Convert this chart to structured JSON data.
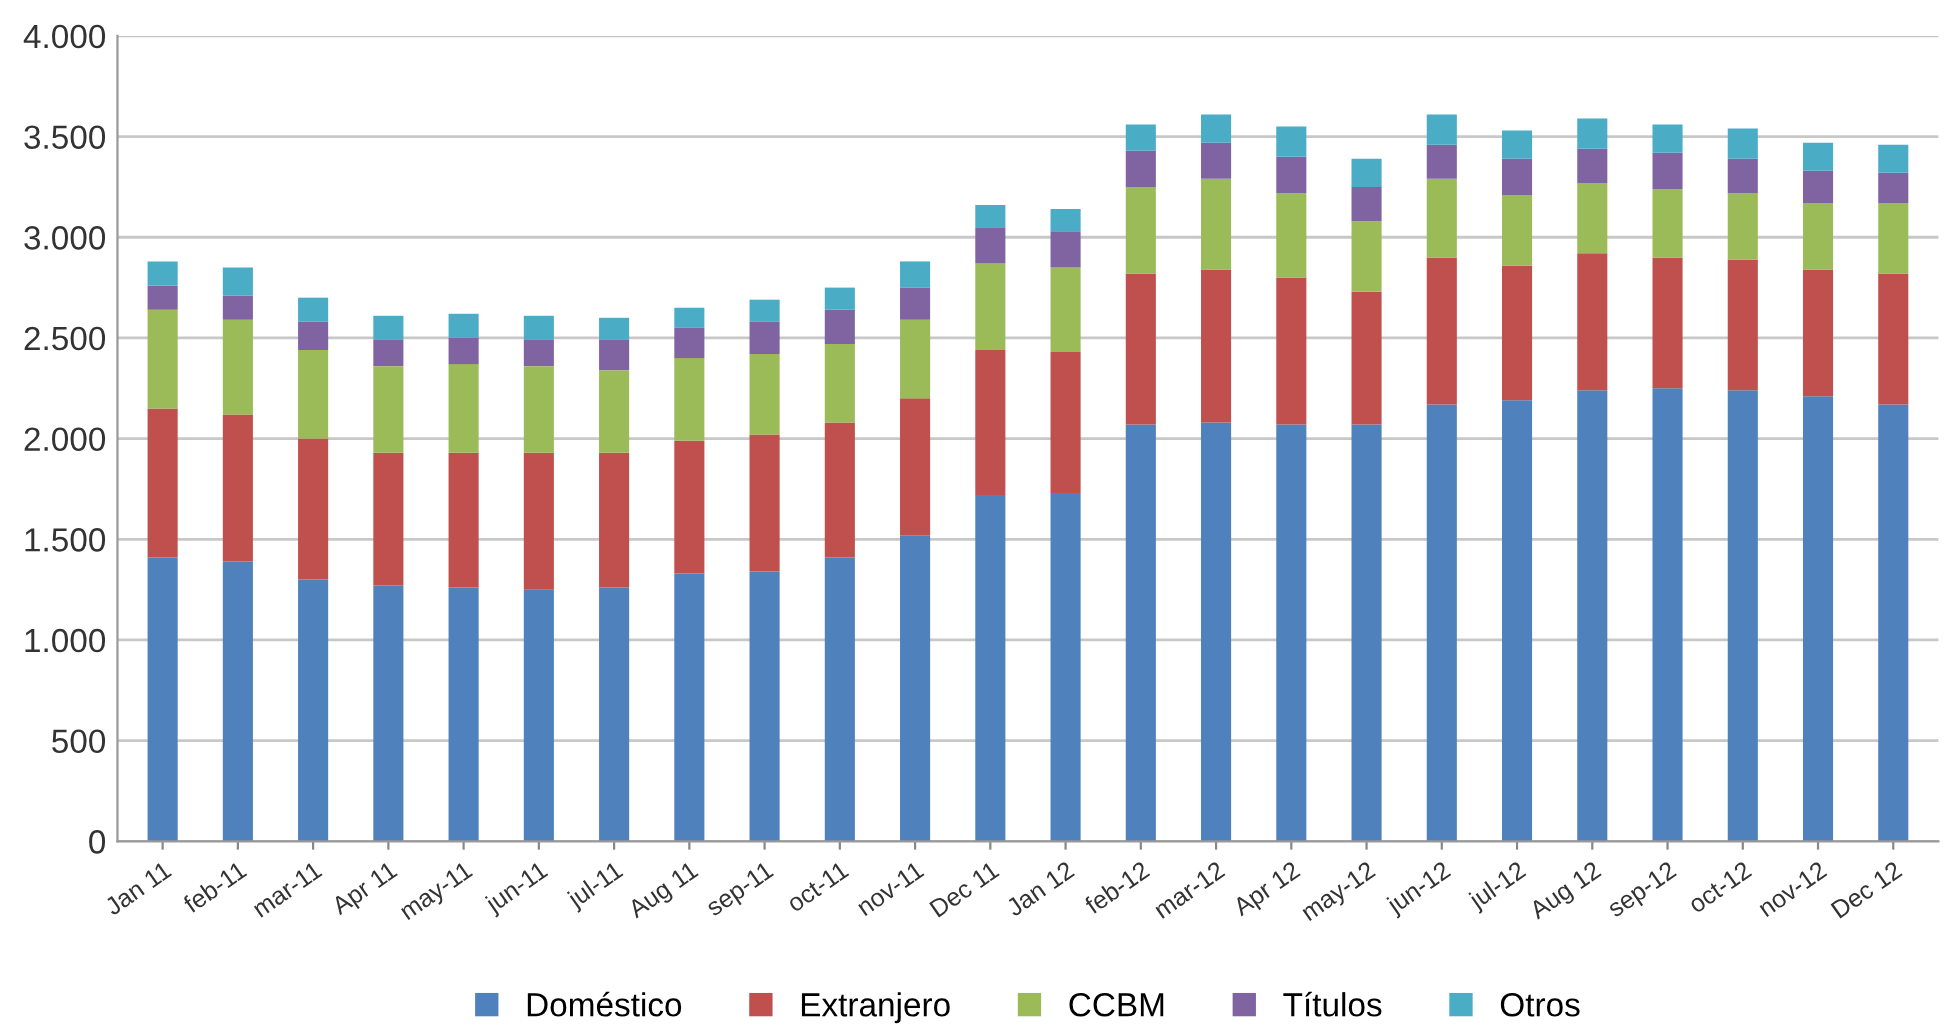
{
  "chart_data": {
    "type": "bar",
    "stacked": true,
    "categories": [
      "Jan 11",
      "feb-11",
      "mar-11",
      "Apr 11",
      "may-11",
      "jun-11",
      "jul-11",
      "Aug 11",
      "sep-11",
      "oct-11",
      "nov-11",
      "Dec 11",
      "Jan 12",
      "feb-12",
      "mar-12",
      "Apr 12",
      "may-12",
      "jun-12",
      "jul-12",
      "Aug 12",
      "sep-12",
      "oct-12",
      "nov-12",
      "Dec 12"
    ],
    "series": [
      {
        "name": "Doméstico",
        "color": "#4f81bd",
        "values": [
          1410,
          1390,
          1300,
          1270,
          1260,
          1250,
          1260,
          1330,
          1340,
          1410,
          1520,
          1720,
          1730,
          2070,
          2080,
          2070,
          2070,
          2170,
          2190,
          2240,
          2250,
          2240,
          2210,
          2170
        ]
      },
      {
        "name": "Extranjero",
        "color": "#c0504d",
        "values": [
          740,
          730,
          700,
          660,
          670,
          680,
          670,
          660,
          680,
          670,
          680,
          720,
          700,
          750,
          760,
          730,
          660,
          730,
          670,
          680,
          650,
          650,
          630,
          650
        ]
      },
      {
        "name": "CCBM",
        "color": "#9bbb59",
        "values": [
          490,
          470,
          440,
          430,
          440,
          430,
          410,
          410,
          400,
          390,
          390,
          430,
          420,
          430,
          450,
          420,
          350,
          390,
          350,
          350,
          340,
          330,
          330,
          350
        ]
      },
      {
        "name": "Títulos",
        "color": "#8064a2",
        "values": [
          120,
          120,
          140,
          130,
          130,
          130,
          150,
          150,
          160,
          170,
          160,
          180,
          180,
          180,
          180,
          180,
          170,
          170,
          180,
          170,
          180,
          170,
          160,
          150
        ]
      },
      {
        "name": "Otros",
        "color": "#4bacc6",
        "values": [
          120,
          140,
          120,
          120,
          120,
          120,
          110,
          100,
          110,
          110,
          130,
          110,
          110,
          130,
          140,
          150,
          140,
          150,
          140,
          150,
          140,
          150,
          140,
          140
        ]
      }
    ],
    "ylim": [
      0,
      4000
    ],
    "yticks": [
      {
        "value": 0,
        "label": "0"
      },
      {
        "value": 500,
        "label": "500"
      },
      {
        "value": 1000,
        "label": "1.000"
      },
      {
        "value": 1500,
        "label": "1.500"
      },
      {
        "value": 2000,
        "label": "2.000"
      },
      {
        "value": 2500,
        "label": "2.500"
      },
      {
        "value": 3000,
        "label": "3.000"
      },
      {
        "value": 3500,
        "label": "3.500"
      },
      {
        "value": 4000,
        "label": "4.000"
      }
    ],
    "grid": "y",
    "legend": "bottom"
  }
}
